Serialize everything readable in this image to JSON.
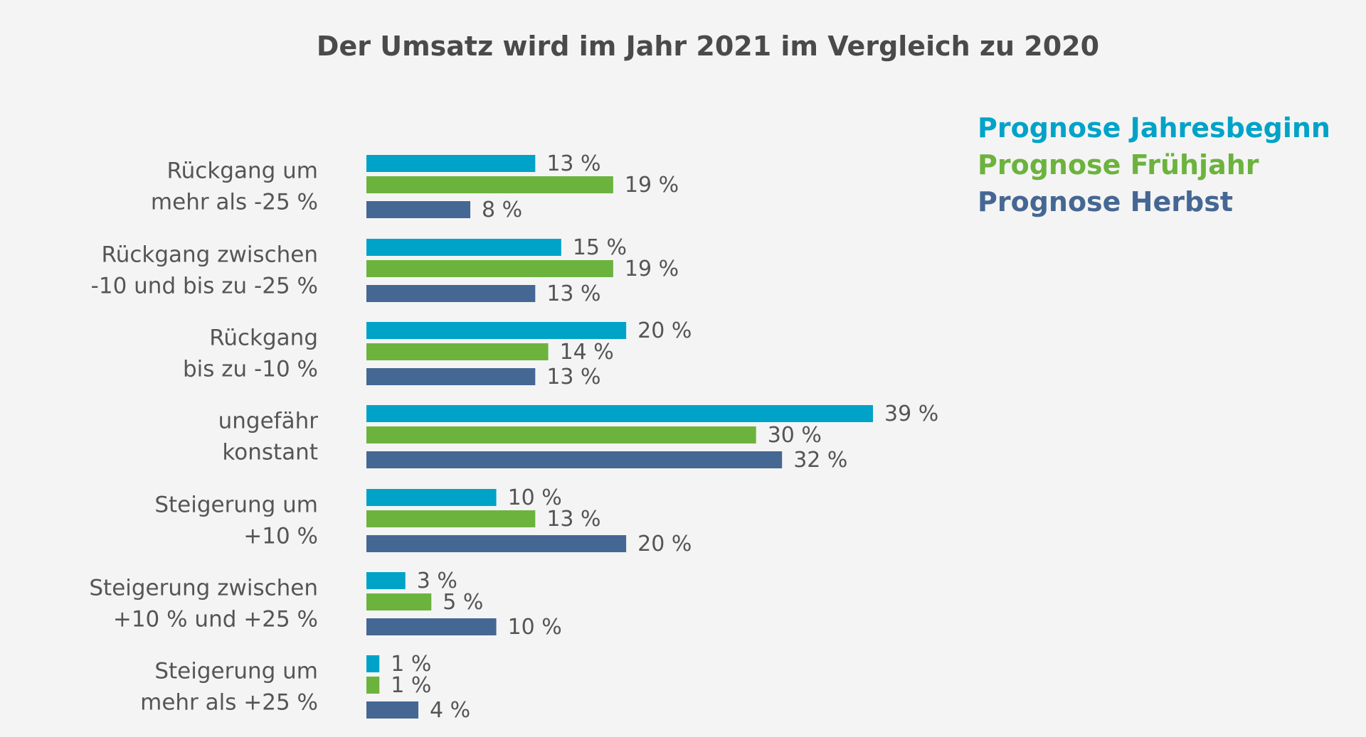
{
  "chart_data": {
    "type": "bar",
    "orientation": "horizontal",
    "title": "Der Umsatz wird im Jahr 2021 im Vergleich zu 2020",
    "categories": [
      [
        "Rückgang um",
        "mehr als -25 %"
      ],
      [
        "Rückgang zwischen",
        "-10 und bis zu -25 %"
      ],
      [
        "Rückgang",
        "bis zu -10 %"
      ],
      [
        "ungefähr",
        "konstant"
      ],
      [
        "Steigerung um",
        "+10 %"
      ],
      [
        "Steigerung zwischen",
        "+10 % und +25 %"
      ],
      [
        "Steigerung um",
        "mehr als +25 %"
      ]
    ],
    "series": [
      {
        "name": "Prognose Jahresbeginn",
        "color": "#00a3c8",
        "values": [
          13,
          15,
          20,
          39,
          10,
          3,
          1
        ]
      },
      {
        "name": "Prognose Frühjahr",
        "color": "#6cb33e",
        "values": [
          19,
          19,
          14,
          30,
          13,
          5,
          1
        ]
      },
      {
        "name": "Prognose Herbst",
        "color": "#456793",
        "values": [
          8,
          13,
          13,
          32,
          20,
          10,
          4
        ]
      }
    ],
    "value_suffix": " %",
    "xlim": [
      0,
      39
    ],
    "grid": false,
    "legend_position": "top-right"
  }
}
